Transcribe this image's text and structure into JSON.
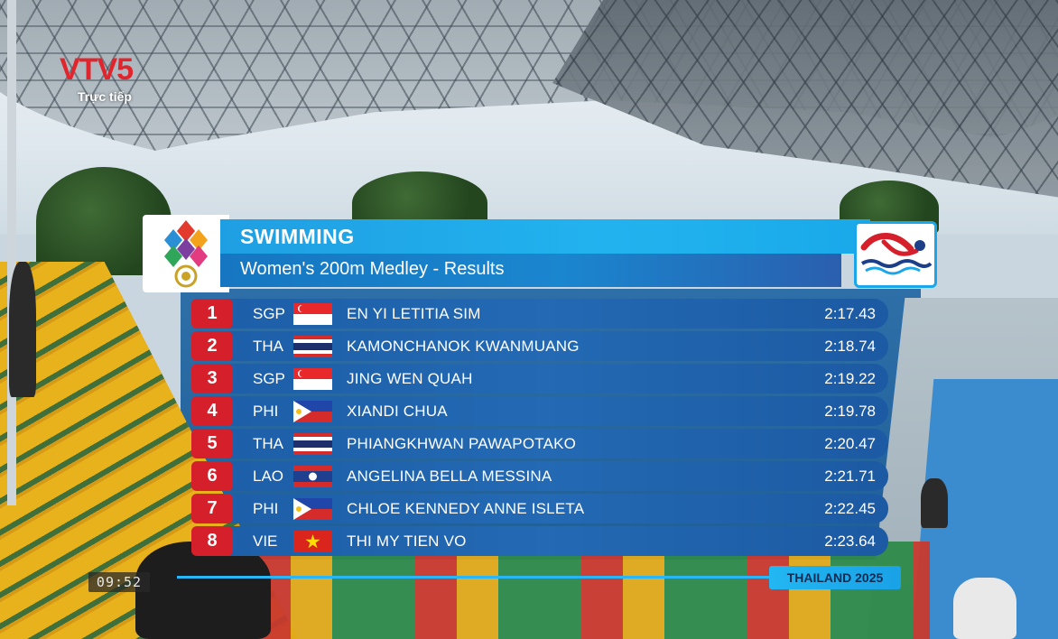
{
  "broadcaster": {
    "logo_letters": "VTV",
    "logo_number": "5",
    "live_label": "Trực tiếp",
    "clock": "09:52"
  },
  "graphic": {
    "title": "SWIMMING",
    "subtitle": "Women's 200m Medley - Results",
    "footer_tag": "THAILAND 2025",
    "accent_color": "#1fa8ea",
    "rank_color": "#d51f2b"
  },
  "results": [
    {
      "rank": "1",
      "country": "SGP",
      "flag": "singapore-flag",
      "name": "EN YI LETITIA SIM",
      "time": "2:17.43"
    },
    {
      "rank": "2",
      "country": "THA",
      "flag": "thailand-flag",
      "name": "KAMONCHANOK KWANMUANG",
      "time": "2:18.74"
    },
    {
      "rank": "3",
      "country": "SGP",
      "flag": "singapore-flag",
      "name": "JING WEN QUAH",
      "time": "2:19.22"
    },
    {
      "rank": "4",
      "country": "PHI",
      "flag": "philippines-flag",
      "name": "XIANDI CHUA",
      "time": "2:19.78"
    },
    {
      "rank": "5",
      "country": "THA",
      "flag": "thailand-flag",
      "name": "PHIANGKHWAN PAWAPOTAKO",
      "time": "2:20.47"
    },
    {
      "rank": "6",
      "country": "LAO",
      "flag": "laos-flag",
      "name": "ANGELINA BELLA MESSINA",
      "time": "2:21.71"
    },
    {
      "rank": "7",
      "country": "PHI",
      "flag": "philippines-flag",
      "name": "CHLOE KENNEDY ANNE ISLETA",
      "time": "2:22.45"
    },
    {
      "rank": "8",
      "country": "VIE",
      "flag": "vietnam-flag",
      "name": "THI MY TIEN VO",
      "time": "2:23.64"
    }
  ]
}
